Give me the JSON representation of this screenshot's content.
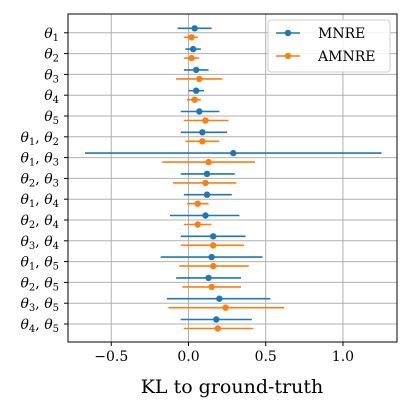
{
  "chart_data": {
    "type": "errorbar",
    "orientation": "horizontal",
    "xlabel": "KL to ground-truth",
    "xlim": [
      -0.78,
      1.35
    ],
    "x_ticks": [
      -0.5,
      0.0,
      0.5,
      1.0
    ],
    "x_tick_labels": [
      "−0.5",
      "0.0",
      "0.5",
      "1.0"
    ],
    "grid": true,
    "legend_position": "top-right",
    "categories": [
      {
        "base": [
          "1"
        ]
      },
      {
        "base": [
          "2"
        ]
      },
      {
        "base": [
          "3"
        ]
      },
      {
        "base": [
          "4"
        ]
      },
      {
        "base": [
          "5"
        ]
      },
      {
        "base": [
          "1",
          "2"
        ]
      },
      {
        "base": [
          "1",
          "3"
        ]
      },
      {
        "base": [
          "2",
          "3"
        ]
      },
      {
        "base": [
          "1",
          "4"
        ]
      },
      {
        "base": [
          "2",
          "4"
        ]
      },
      {
        "base": [
          "3",
          "4"
        ]
      },
      {
        "base": [
          "1",
          "5"
        ]
      },
      {
        "base": [
          "2",
          "5"
        ]
      },
      {
        "base": [
          "3",
          "5"
        ]
      },
      {
        "base": [
          "4",
          "5"
        ]
      }
    ],
    "category_symbol": "θ",
    "series": [
      {
        "name": "MNRE",
        "color": "#1f77b4",
        "points": [
          {
            "x": 0.04,
            "lo": -0.07,
            "hi": 0.15
          },
          {
            "x": 0.03,
            "lo": -0.02,
            "hi": 0.08
          },
          {
            "x": 0.05,
            "lo": -0.03,
            "hi": 0.13
          },
          {
            "x": 0.05,
            "lo": 0.0,
            "hi": 0.1
          },
          {
            "x": 0.07,
            "lo": -0.05,
            "hi": 0.2
          },
          {
            "x": 0.09,
            "lo": -0.05,
            "hi": 0.25
          },
          {
            "x": 0.29,
            "lo": -0.67,
            "hi": 1.25
          },
          {
            "x": 0.12,
            "lo": -0.05,
            "hi": 0.3
          },
          {
            "x": 0.12,
            "lo": -0.03,
            "hi": 0.28
          },
          {
            "x": 0.11,
            "lo": -0.12,
            "hi": 0.33
          },
          {
            "x": 0.16,
            "lo": -0.05,
            "hi": 0.37
          },
          {
            "x": 0.15,
            "lo": -0.18,
            "hi": 0.48
          },
          {
            "x": 0.13,
            "lo": -0.08,
            "hi": 0.34
          },
          {
            "x": 0.2,
            "lo": -0.14,
            "hi": 0.53
          },
          {
            "x": 0.18,
            "lo": -0.05,
            "hi": 0.41
          }
        ]
      },
      {
        "name": "AMNRE",
        "color": "#ff7f0e",
        "points": [
          {
            "x": 0.02,
            "lo": -0.03,
            "hi": 0.06
          },
          {
            "x": 0.02,
            "lo": -0.03,
            "hi": 0.07
          },
          {
            "x": 0.07,
            "lo": -0.08,
            "hi": 0.22
          },
          {
            "x": 0.04,
            "lo": -0.01,
            "hi": 0.08
          },
          {
            "x": 0.11,
            "lo": -0.03,
            "hi": 0.26
          },
          {
            "x": 0.09,
            "lo": -0.02,
            "hi": 0.2
          },
          {
            "x": 0.13,
            "lo": -0.17,
            "hi": 0.43
          },
          {
            "x": 0.11,
            "lo": -0.1,
            "hi": 0.31
          },
          {
            "x": 0.06,
            "lo": -0.01,
            "hi": 0.13
          },
          {
            "x": 0.06,
            "lo": -0.03,
            "hi": 0.15
          },
          {
            "x": 0.16,
            "lo": -0.05,
            "hi": 0.36
          },
          {
            "x": 0.16,
            "lo": -0.06,
            "hi": 0.39
          },
          {
            "x": 0.15,
            "lo": -0.04,
            "hi": 0.34
          },
          {
            "x": 0.24,
            "lo": -0.13,
            "hi": 0.62
          },
          {
            "x": 0.19,
            "lo": -0.03,
            "hi": 0.42
          }
        ]
      }
    ]
  }
}
